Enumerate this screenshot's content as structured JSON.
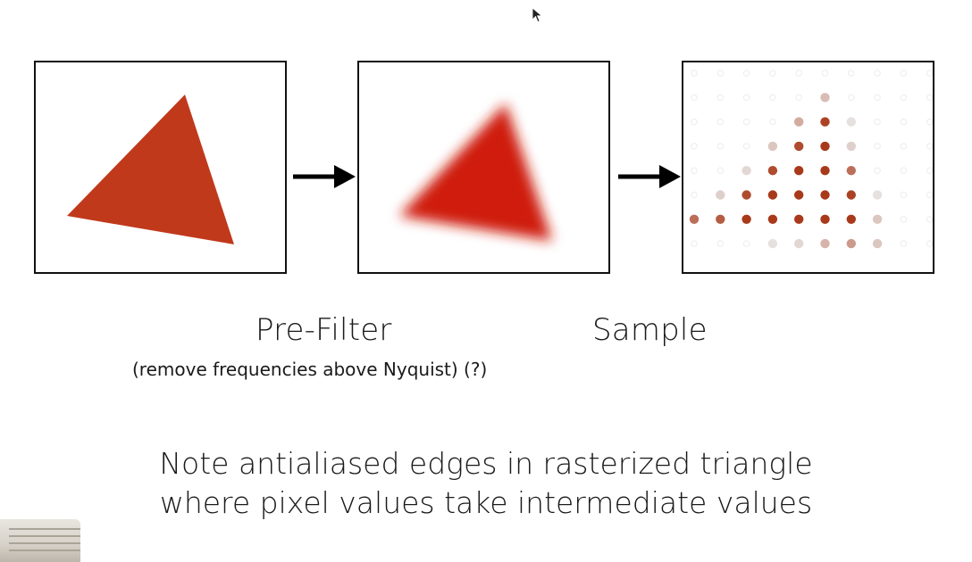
{
  "labels": {
    "prefilter": "Pre-Filter",
    "prefilter_note": "(remove frequencies above Nyquist) (?)",
    "sample": "Sample"
  },
  "caption": {
    "line1": "Note antialiased edges in rasterized triangle",
    "line2": "where pixel values take intermediate values"
  },
  "colors": {
    "triangle": "#c0391b",
    "blurred_triangle": "#cf1c10",
    "sample_full": "#a8391a",
    "sample_empty": "#e9e9e9",
    "frame": "#111111"
  },
  "icons": {
    "arrow": "right-arrow-icon",
    "cursor": "mouse-cursor-icon"
  },
  "sample_grid": {
    "columns": 10,
    "rows": 8,
    "intensity": [
      [
        0,
        0,
        0,
        0,
        0,
        0,
        0,
        0,
        0,
        0
      ],
      [
        0,
        0,
        0,
        0,
        0,
        0.25,
        0,
        0,
        0,
        0
      ],
      [
        0,
        0,
        0,
        0,
        0.35,
        0.95,
        0.05,
        0,
        0,
        0
      ],
      [
        0,
        0,
        0,
        0.2,
        0.9,
        1,
        0.15,
        0,
        0,
        0
      ],
      [
        0,
        0,
        0.1,
        0.9,
        1,
        1,
        0.7,
        0,
        0,
        0
      ],
      [
        0,
        0.15,
        0.9,
        1,
        1,
        1,
        0.95,
        0.05,
        0,
        0
      ],
      [
        0.7,
        0.8,
        1,
        1,
        1,
        1,
        1,
        0.2,
        0,
        0
      ],
      [
        0,
        0,
        0,
        0.05,
        0.1,
        0.3,
        0.45,
        0.2,
        0,
        0
      ]
    ]
  }
}
